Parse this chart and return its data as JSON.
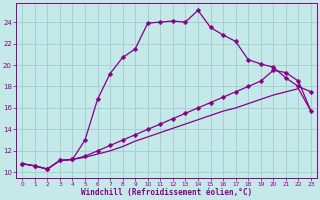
{
  "xlabel": "Windchill (Refroidissement éolien,°C)",
  "bg_color": "#c5e8e8",
  "grid_color": "#9ecece",
  "line_color": "#880088",
  "xlim": [
    -0.5,
    23.5
  ],
  "ylim": [
    9.5,
    25.8
  ],
  "xticks": [
    0,
    1,
    2,
    3,
    4,
    5,
    6,
    7,
    8,
    9,
    10,
    11,
    12,
    13,
    14,
    15,
    16,
    17,
    18,
    19,
    20,
    21,
    22,
    23
  ],
  "yticks": [
    10,
    12,
    14,
    16,
    18,
    20,
    22,
    24
  ],
  "line1_x": [
    0,
    1,
    2,
    3,
    4,
    5,
    6,
    7,
    8,
    9,
    10,
    11,
    12,
    13,
    14,
    15,
    16,
    17,
    18,
    19,
    20,
    21,
    22,
    23
  ],
  "line1_y": [
    10.8,
    10.6,
    10.3,
    11.1,
    11.2,
    13.0,
    16.8,
    19.2,
    20.7,
    21.5,
    23.9,
    24.0,
    24.1,
    24.0,
    25.1,
    23.5,
    22.8,
    22.2,
    20.5,
    20.1,
    19.8,
    18.8,
    18.0,
    17.5
  ],
  "line2_x": [
    0,
    1,
    2,
    3,
    4,
    5,
    6,
    7,
    8,
    9,
    10,
    11,
    12,
    13,
    14,
    15,
    16,
    17,
    18,
    19,
    20,
    21,
    22,
    23
  ],
  "line2_y": [
    10.8,
    10.6,
    10.3,
    11.1,
    11.2,
    11.5,
    12.0,
    12.5,
    13.0,
    13.5,
    14.0,
    14.5,
    15.0,
    15.5,
    16.0,
    16.5,
    17.0,
    17.5,
    18.0,
    18.5,
    19.5,
    19.3,
    18.5,
    15.7
  ],
  "line3_x": [
    0,
    1,
    2,
    3,
    4,
    5,
    6,
    7,
    8,
    9,
    10,
    11,
    12,
    13,
    14,
    15,
    16,
    17,
    18,
    19,
    20,
    21,
    22,
    23
  ],
  "line3_y": [
    10.8,
    10.6,
    10.3,
    11.1,
    11.2,
    11.4,
    11.7,
    12.0,
    12.4,
    12.9,
    13.3,
    13.7,
    14.1,
    14.5,
    14.9,
    15.3,
    15.7,
    16.0,
    16.4,
    16.8,
    17.2,
    17.5,
    17.8,
    15.7
  ],
  "marker_size": 2.5,
  "line_width": 0.9
}
